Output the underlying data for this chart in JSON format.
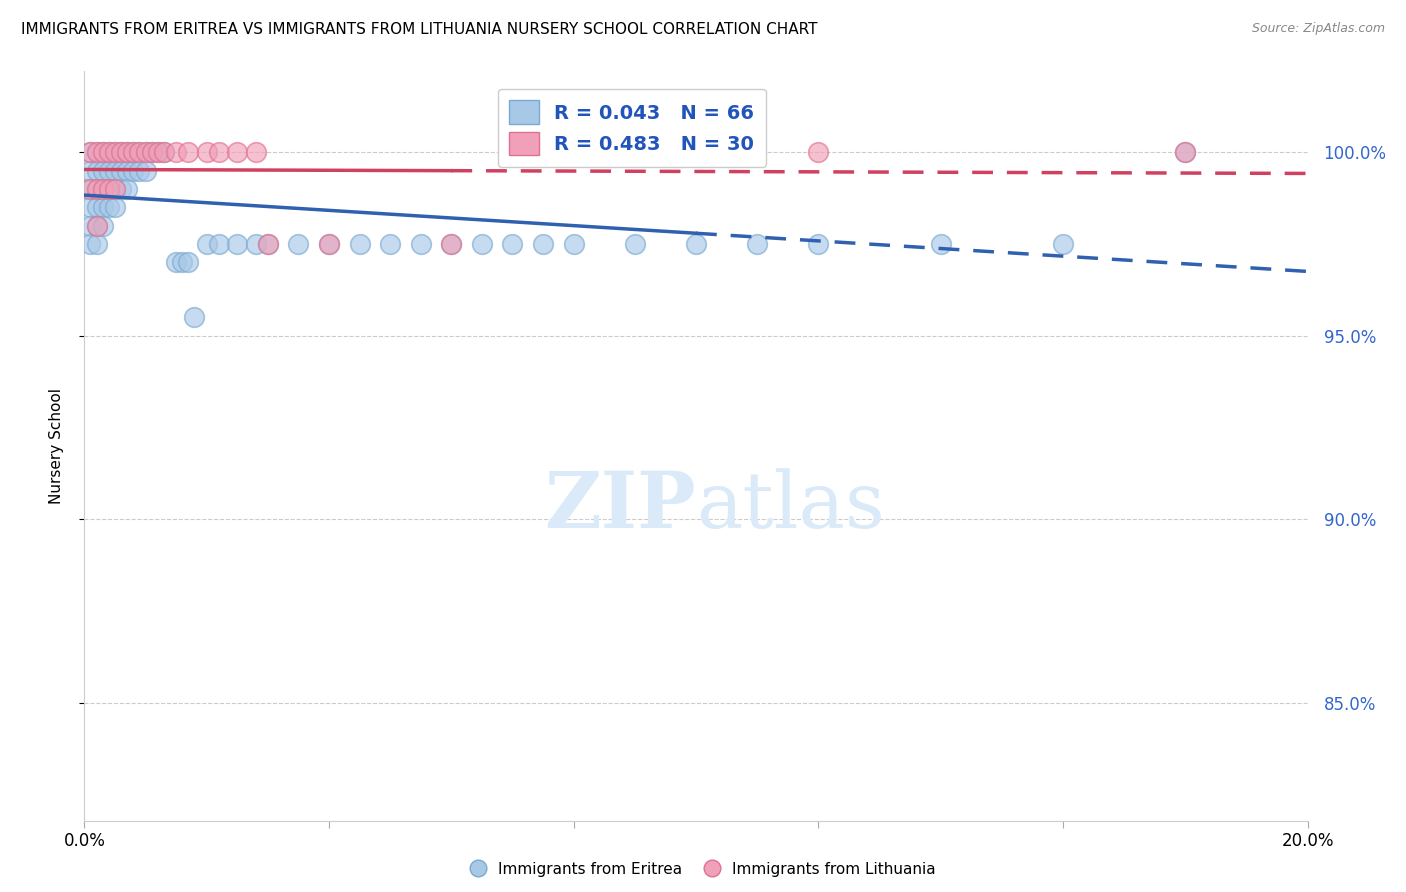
{
  "title": "IMMIGRANTS FROM ERITREA VS IMMIGRANTS FROM LITHUANIA NURSERY SCHOOL CORRELATION CHART",
  "source": "Source: ZipAtlas.com",
  "ylabel": "Nursery School",
  "color_eritrea": "#a8c8e8",
  "color_eritrea_edge": "#7aaad0",
  "color_lithuania": "#f0a0b8",
  "color_lithuania_edge": "#e07090",
  "line_color_eritrea": "#3060b0",
  "line_color_lithuania": "#d04060",
  "watermark_color": "#daeaf8",
  "R_eritrea": 0.043,
  "N_eritrea": 66,
  "R_lithuania": 0.483,
  "N_lithuania": 30,
  "eritrea_x": [
    0.001,
    0.001,
    0.001,
    0.001,
    0.001,
    0.001,
    0.002,
    0.002,
    0.002,
    0.002,
    0.002,
    0.002,
    0.003,
    0.003,
    0.003,
    0.003,
    0.003,
    0.004,
    0.004,
    0.004,
    0.004,
    0.005,
    0.005,
    0.005,
    0.005,
    0.006,
    0.006,
    0.006,
    0.007,
    0.007,
    0.007,
    0.008,
    0.008,
    0.009,
    0.009,
    0.01,
    0.01,
    0.011,
    0.012,
    0.013,
    0.015,
    0.016,
    0.017,
    0.018,
    0.02,
    0.022,
    0.025,
    0.028,
    0.03,
    0.035,
    0.04,
    0.045,
    0.05,
    0.055,
    0.06,
    0.065,
    0.07,
    0.075,
    0.08,
    0.09,
    0.1,
    0.11,
    0.12,
    0.14,
    0.16,
    0.18
  ],
  "eritrea_y": [
    1.0,
    0.995,
    0.99,
    0.985,
    0.98,
    0.975,
    1.0,
    0.995,
    0.99,
    0.985,
    0.98,
    0.975,
    1.0,
    0.995,
    0.99,
    0.985,
    0.98,
    1.0,
    0.995,
    0.99,
    0.985,
    1.0,
    0.995,
    0.99,
    0.985,
    1.0,
    0.995,
    0.99,
    1.0,
    0.995,
    0.99,
    1.0,
    0.995,
    1.0,
    0.995,
    1.0,
    0.995,
    1.0,
    1.0,
    1.0,
    0.97,
    0.97,
    0.97,
    0.955,
    0.975,
    0.975,
    0.975,
    0.975,
    0.975,
    0.975,
    0.975,
    0.975,
    0.975,
    0.975,
    0.975,
    0.975,
    0.975,
    0.975,
    0.975,
    0.975,
    0.975,
    0.975,
    0.975,
    0.975,
    0.975,
    1.0
  ],
  "lithuania_x": [
    0.001,
    0.001,
    0.002,
    0.002,
    0.002,
    0.003,
    0.003,
    0.004,
    0.004,
    0.005,
    0.005,
    0.006,
    0.007,
    0.008,
    0.009,
    0.01,
    0.011,
    0.012,
    0.013,
    0.015,
    0.017,
    0.02,
    0.022,
    0.025,
    0.028,
    0.03,
    0.04,
    0.06,
    0.12,
    0.18
  ],
  "lithuania_y": [
    1.0,
    0.99,
    1.0,
    0.99,
    0.98,
    1.0,
    0.99,
    1.0,
    0.99,
    1.0,
    0.99,
    1.0,
    1.0,
    1.0,
    1.0,
    1.0,
    1.0,
    1.0,
    1.0,
    1.0,
    1.0,
    1.0,
    1.0,
    1.0,
    1.0,
    0.975,
    0.975,
    0.975,
    1.0,
    1.0
  ],
  "ylim_min": 0.818,
  "ylim_max": 1.022,
  "xlim_min": 0.0,
  "xlim_max": 0.2,
  "yticks": [
    0.85,
    0.9,
    0.95,
    1.0
  ],
  "ytick_labels": [
    "85.0%",
    "90.0%",
    "95.0%",
    "100.0%"
  ],
  "xtick_positions": [
    0.0,
    0.04,
    0.08,
    0.12,
    0.16,
    0.2
  ],
  "xtick_labels": [
    "0.0%",
    "",
    "",
    "",
    "",
    "20.0%"
  ],
  "solid_cutoff_eritrea": 0.1,
  "solid_cutoff_lithuania": 0.06
}
